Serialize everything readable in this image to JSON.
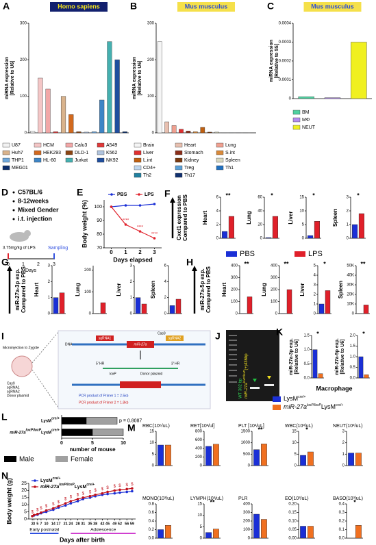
{
  "chart_data": [
    {
      "label": "A",
      "type": "bar",
      "title": "Homo sapiens",
      "ylabel": [
        "miRNA expression",
        "[Relative to U6]"
      ],
      "categories": [
        "U87",
        "HCM",
        "Calu3",
        "A549",
        "Huh7",
        "HEK293",
        "DLD-1",
        "K562",
        "THP1",
        "HL-60",
        "Jurkat",
        "NK92",
        "MEG01"
      ],
      "colors": [
        "#f2f2f2",
        "#f4c6c6",
        "#f2a7a7",
        "#e03a3a",
        "#d9b38c",
        "#d2691e",
        "#8b4513",
        "#b0c4de",
        "#6fa8dc",
        "#3d85c6",
        "#45b0b0",
        "#1f4e9e",
        "#0b2d6b"
      ],
      "values": [
        4,
        150,
        120,
        3,
        100,
        50,
        3,
        2,
        3,
        90,
        250,
        200,
        3
      ],
      "ylim": [
        0,
        300
      ],
      "yticks": [
        0,
        100,
        200,
        300
      ]
    },
    {
      "label": "B",
      "type": "bar",
      "title": "Mus musculus",
      "ylabel": [
        "miRNA expression",
        "[Relative to U6]"
      ],
      "categories": [
        "Brain",
        "Heart",
        "Lung",
        "Liver",
        "Stomach",
        "S.int",
        "L.int",
        "Kidney",
        "Spleen",
        "CD4+",
        "Treg",
        "Th1",
        "Th2",
        "Th17"
      ],
      "colors": [
        "#f5f5f5",
        "#e8c0b0",
        "#f0a090",
        "#e03030",
        "#8b2e1a",
        "#d98a3a",
        "#c06010",
        "#7a3a10",
        "#d8d8c0",
        "#c0d8f0",
        "#5aa0d8",
        "#2070c0",
        "#2080a0",
        "#103070"
      ],
      "values": [
        250,
        30,
        20,
        10,
        5,
        3,
        15,
        2,
        2,
        0.1,
        0.08,
        0.05,
        0.03,
        0.02
      ],
      "ylim": [
        0,
        300
      ],
      "yticks": [
        0,
        100,
        200,
        300
      ]
    },
    {
      "label": "C",
      "type": "bar",
      "title": "Mus musculus",
      "ylabel": [
        "miRNA expression",
        "[Relative to 5S]"
      ],
      "categories": [
        "BM",
        "MΦ",
        "NEUT"
      ],
      "colors": [
        "#4fd1a0",
        "#b48cf0",
        "#f0f020"
      ],
      "values": [
        1e-05,
        5e-06,
        0.0003
      ],
      "ylim": [
        0,
        0.0004
      ],
      "yticks": [
        0,
        0.0001,
        0.0002,
        0.0003,
        0.0004
      ]
    },
    {
      "label": "E",
      "type": "line",
      "ylabel": "Body weight (%)",
      "xlabel": "Days elapsed",
      "x": [
        0,
        1,
        2,
        3
      ],
      "xlim": [
        -0.5,
        3.5
      ],
      "xticks": [
        0,
        1,
        2,
        3
      ],
      "ylim": [
        70,
        105
      ],
      "yticks": [
        70,
        80,
        90,
        100
      ],
      "series": [
        {
          "name": "PBS",
          "color": "#1a2fd6",
          "values": [
            100,
            101,
            101,
            102
          ]
        },
        {
          "name": "LPS",
          "color": "#e0202a",
          "values": [
            100,
            87,
            82,
            77
          ]
        }
      ],
      "annotations": [
        null,
        "****",
        "****",
        "****"
      ]
    },
    {
      "label": "F",
      "type": "bar-group",
      "ylabel": [
        "Cxcl1 expression",
        "Compared to PBS"
      ],
      "series": [
        {
          "name": "PBS",
          "color": "#1a2fd6"
        },
        {
          "name": "LPS",
          "color": "#e0202a"
        }
      ],
      "charts": [
        {
          "title": "Heart",
          "values": [
            1,
            3.2
          ],
          "ylim": [
            0,
            6
          ],
          "yticks": [
            0,
            2,
            4,
            6
          ],
          "annotation": "**"
        },
        {
          "title": "Lung",
          "values": [
            1,
            32
          ],
          "ylim": [
            0,
            60
          ],
          "yticks": [
            0,
            20,
            40,
            60
          ],
          "annotation": "*"
        },
        {
          "title": "Liver",
          "values": [
            1,
            6.2
          ],
          "ylim": [
            0,
            15
          ],
          "yticks": [
            0,
            5,
            10,
            15
          ],
          "annotation": "*"
        },
        {
          "title": "Spleen",
          "values": [
            1,
            1.8
          ],
          "ylim": [
            0,
            3
          ],
          "yticks": [
            0,
            1,
            2,
            3
          ],
          "annotation": "*"
        }
      ]
    },
    {
      "label": "G",
      "type": "bar-group",
      "ylabel": [
        "miR-27a-3p exp.",
        "Compared to PBS"
      ],
      "colors": [
        "#1a2fd6",
        "#e0202a"
      ],
      "charts": [
        {
          "title": "Heart",
          "values": [
            1,
            1.3
          ],
          "ylim": [
            0,
            3
          ],
          "yticks": [
            0,
            1,
            2,
            3
          ]
        },
        {
          "title": "Lung",
          "values": [
            1,
            50
          ],
          "ylim": [
            0,
            220
          ],
          "yticks": [
            0,
            100,
            200
          ]
        },
        {
          "title": "Liver",
          "values": [
            1,
            0.6
          ],
          "ylim": [
            0,
            3
          ],
          "yticks": [
            0,
            1,
            2,
            3
          ]
        },
        {
          "title": "Spleen",
          "values": [
            1,
            1.8
          ],
          "ylim": [
            0,
            6
          ],
          "yticks": [
            0,
            2,
            4,
            6
          ]
        }
      ]
    },
    {
      "label": "H",
      "type": "bar-group",
      "ylabel": [
        "miR-27a-5p exp.",
        "Compared to PBS"
      ],
      "colors": [
        "#1a2fd6",
        "#e0202a"
      ],
      "charts": [
        {
          "title": "Heart",
          "values": [
            1,
            140
          ],
          "ylim": [
            0,
            400
          ],
          "yticks": [
            0,
            100,
            200,
            300,
            400
          ],
          "annotation": "**"
        },
        {
          "title": "Lung",
          "values": [
            1,
            200
          ],
          "ylim": [
            0,
            400
          ],
          "yticks": [
            0,
            100,
            200,
            300,
            400
          ],
          "annotation": "**"
        },
        {
          "title": "Liver",
          "values": [
            1,
            2.4
          ],
          "ylim": [
            0,
            5
          ],
          "yticks": [
            0,
            1,
            2,
            3,
            4,
            5
          ],
          "annotation": "*"
        },
        {
          "title": "Spleen",
          "values": [
            1,
            9000
          ],
          "ylim": [
            0,
            50000
          ],
          "yticks": [
            0,
            {
              "value": 10000,
              "label": "10K"
            },
            {
              "value": 20000,
              "label": "20K"
            },
            {
              "value": 30000,
              "label": "30K"
            },
            {
              "value": 40000,
              "label": "40K"
            },
            {
              "value": 50000,
              "label": "50K"
            }
          ],
          "annotation": "**"
        }
      ]
    },
    {
      "label": "K",
      "type": "bar-group",
      "title": "Macrophage",
      "series": [
        {
          "name": [
            "LysM",
            "cre/+"
          ],
          "color": "#1a2fd6"
        },
        {
          "name": [
            "miR-27a",
            "loxP/loxP",
            "LysM",
            "cre/+"
          ],
          "color": "#f07020"
        }
      ],
      "charts": [
        {
          "ylabel": [
            "miR-27a-3p exp.",
            "[Relative to U6]"
          ],
          "values": [
            1,
            0.15
          ],
          "ylim": [
            0,
            1.5
          ],
          "yticks": [
            {
              "value": 0,
              "label": "0.0"
            },
            0.5,
            {
              "value": 1,
              "label": "1.0"
            },
            1.5
          ],
          "annotation": "*"
        },
        {
          "ylabel": [
            "miR-27a-5p exp.",
            "[Relative to U6]"
          ],
          "values": [
            1,
            0.15
          ],
          "ylim": [
            0,
            2
          ],
          "yticks": [
            {
              "value": 0,
              "label": "0.0"
            },
            0.5,
            {
              "value": 1,
              "label": "1.0"
            },
            1.5,
            {
              "value": 2,
              "label": "2.0"
            }
          ],
          "annotation": "*"
        }
      ]
    },
    {
      "label": "L",
      "type": "hbar",
      "categories": [
        [
          "LysM",
          "cre/+"
        ],
        [
          "miR-27a",
          "loxP/loxP",
          "LysM",
          "cre/+"
        ]
      ],
      "series": [
        {
          "name": "Male",
          "color": "#000000",
          "values": [
            4,
            5
          ]
        },
        {
          "name": "Female",
          "color": "#a0a0a0",
          "values": [
            5,
            5
          ]
        }
      ],
      "xlim": [
        0,
        10
      ],
      "xticks": [
        0,
        5,
        10
      ],
      "xlabel": "number of mouse",
      "annotation": "p = 0.8087"
    },
    {
      "label": "M",
      "type": "bar-group",
      "colors": [
        "#1a2fd6",
        "#f07020"
      ],
      "charts": [
        {
          "title": "RBC(10⁶/uL)",
          "values": [
            9,
            9
          ],
          "ylim": [
            0,
            15
          ],
          "yticks": [
            0,
            5,
            10,
            15
          ]
        },
        {
          "title": "RET[10³/ul]",
          "values": [
            450,
            500
          ],
          "ylim": [
            0,
            800
          ],
          "yticks": [
            0,
            200,
            400,
            600,
            800
          ]
        },
        {
          "title": "PLT [10³/uL]",
          "values": [
            700,
            950
          ],
          "ylim": [
            0,
            1500
          ],
          "yticks": [
            0,
            500,
            1000,
            1500
          ],
          "annotation": "**"
        },
        {
          "title": "WBC(10³/uL)",
          "values": [
            4.5,
            6
          ],
          "ylim": [
            0,
            15
          ],
          "yticks": [
            0,
            5,
            10,
            15
          ],
          "annotation": "*"
        },
        {
          "title": "NEUT(10³/uL)",
          "values": [
            1.1,
            1.1
          ],
          "ylim": [
            0,
            3
          ],
          "yticks": [
            0,
            1,
            2,
            3
          ]
        },
        {
          "title": "MONO(10³/uL)",
          "values": [
            0.2,
            0.3
          ],
          "ylim": [
            0,
            0.8
          ],
          "yticks": [
            {
              "value": 0,
              "label": "0.0"
            },
            0.2,
            0.4,
            0.6,
            0.8
          ]
        },
        {
          "title": "LYMPH(10³/uL)",
          "values": [
            2.5,
            4
          ],
          "ylim": [
            0,
            15
          ],
          "yticks": [
            0,
            5,
            10,
            15
          ],
          "annotation": "**"
        },
        {
          "title": "PLR",
          "values": [
            280,
            220
          ],
          "ylim": [
            0,
            400
          ],
          "yticks": [
            0,
            100,
            200,
            300,
            400
          ]
        },
        {
          "title": "EO(10³/uL)",
          "values": [
            0.07,
            0.07
          ],
          "ylim": [
            0,
            0.2
          ],
          "yticks": [
            {
              "value": 0,
              "label": "0.00"
            },
            0.05,
            {
              "value": 0.1,
              "label": "0.10"
            },
            0.15,
            {
              "value": 0.2,
              "label": "0.20"
            }
          ]
        },
        {
          "title": "BASO(10³/uL)",
          "values": [
            0,
            0.15
          ],
          "ylim": [
            0,
            0.4
          ],
          "yticks": [
            {
              "value": 0,
              "label": "0.0"
            },
            0.1,
            0.2,
            0.3,
            0.4
          ],
          "annotation": "*"
        }
      ]
    },
    {
      "label": "N",
      "type": "line",
      "ylabel": "Body weight (g)",
      "xlabel": "Days after birth",
      "x": [
        2,
        3,
        5,
        7,
        10,
        14,
        17,
        21,
        24,
        28,
        31,
        35,
        38,
        42,
        45,
        49,
        52,
        56,
        59
      ],
      "xlim": [
        0,
        61
      ],
      "xticks": [
        2,
        3,
        5,
        7,
        10,
        14,
        17,
        21,
        24,
        28,
        31,
        35,
        38,
        42,
        45,
        49,
        52,
        56,
        59
      ],
      "ylim": [
        0,
        25
      ],
      "yticks": [
        0,
        5,
        10,
        15,
        20,
        25
      ],
      "series": [
        {
          "name": [
            "LysM",
            "cre/+"
          ],
          "color": "#1a2fd6",
          "values": [
            2,
            2.5,
            3,
            4,
            5,
            6.5,
            8,
            9.5,
            11,
            12.5,
            14,
            15,
            16,
            17,
            17.5,
            18,
            18.5,
            19,
            19.5
          ]
        },
        {
          "name": [
            "miR-27a",
            "loxP/loxP",
            "LysM",
            "cre/+"
          ],
          "color": "#c0101a",
          "values": [
            2,
            2.8,
            3.5,
            4.5,
            6,
            7.5,
            9,
            11,
            12.5,
            14,
            15,
            16,
            17,
            18,
            19,
            20,
            20.5,
            21,
            21.5
          ]
        }
      ],
      "annotations": [
        "$",
        null,
        "$",
        "$",
        "$",
        "$",
        "$",
        "$",
        "$",
        "$",
        "$",
        "$",
        "$",
        "$",
        "$",
        "$",
        "$",
        "$",
        "$"
      ],
      "periods": [
        "Early postnatal",
        "Adolescence"
      ]
    }
  ],
  "schematic_d": {
    "label": "D",
    "items": [
      "C57BL/6",
      "8-12weeks",
      "Mixed Gender",
      "i.t. injection"
    ],
    "dose": "3.75mg/kg of LPS",
    "sampling": "Sampling",
    "timeline": [
      0,
      1,
      2,
      3
    ],
    "axis_label": "Days"
  },
  "schematic_i": {
    "label": "I",
    "zygote": "Microinjection to Zygote",
    "mix": [
      "Cas9",
      "sgRNA1",
      "sgRNA2",
      "Donor plasmid"
    ],
    "dna": "DNA",
    "guides": [
      "sgRNA1",
      "sgRNA2"
    ],
    "cas9": "Cas9",
    "gene": "miR-27a",
    "hr": [
      "5' HR",
      "3' HR"
    ],
    "loxp": "loxP",
    "donor": "Donor plasmid",
    "pcr": [
      "PCR product of Primer 1 = 2.5kb",
      "PCR product of Primer 2 = 1.8kb"
    ]
  },
  "gel_j": {
    "label": "J",
    "lanes": [
      "WT 302 bp",
      [
        "miR-27a",
        "loxP/loxP",
        "(+)436bp"
      ]
    ]
  }
}
